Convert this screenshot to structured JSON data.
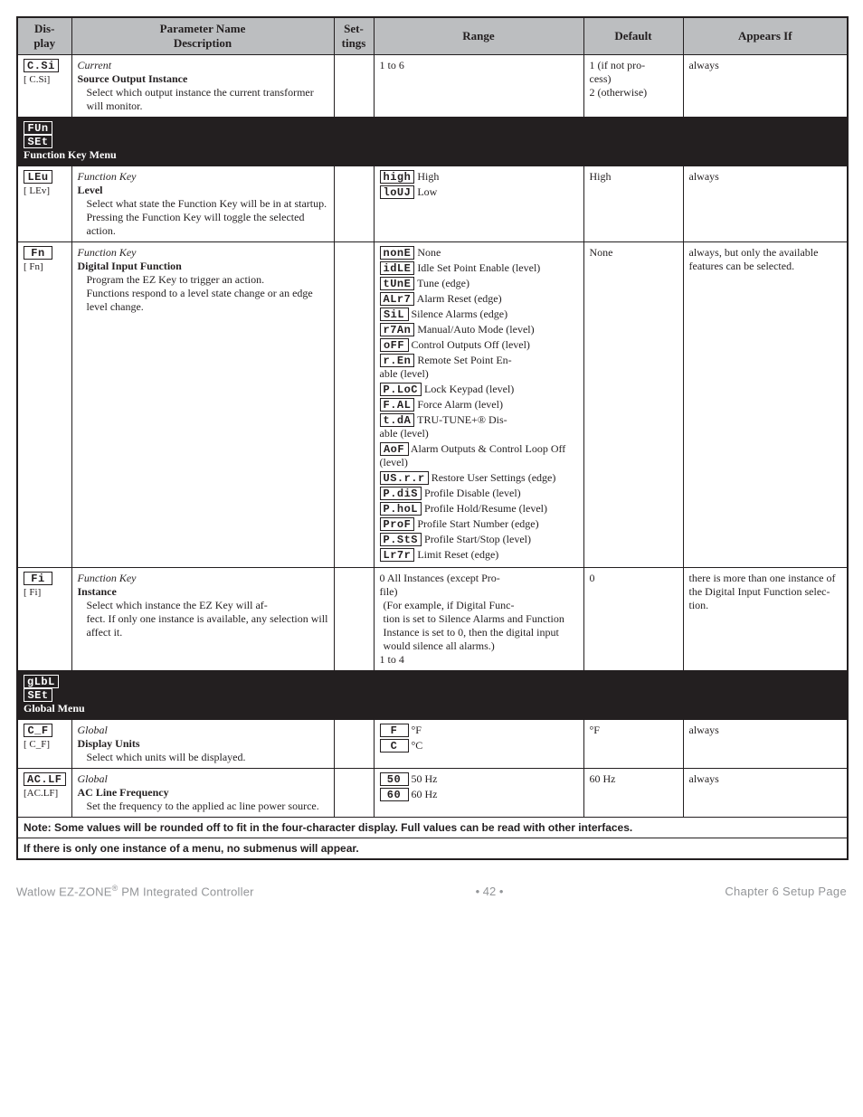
{
  "header": {
    "display": "Dis-\nplay",
    "param": "Parameter Name\nDescription",
    "settings": "Set-\ntings",
    "range": "Range",
    "default": "Default",
    "appears": "Appears If"
  },
  "rows": {
    "csi": {
      "seg": "C.Si",
      "code": "[ C.Si]",
      "name_i": "Current",
      "name_b": "Source Output Instance",
      "desc": "Select which output instance the current transformer will monitor.",
      "range": "1 to 6",
      "default": "1 (if not pro-\ncess)\n2 (otherwise)",
      "appears": "always"
    },
    "sec_fun": {
      "seg1": "FUn",
      "seg2": "SEt",
      "title": "Function Key Menu"
    },
    "lev": {
      "seg": "LEu",
      "code": "[ LEv]",
      "name_i": "Function Key",
      "name_b": "Level",
      "desc1": "Select what state the Function Key will be in at startup.",
      "desc2": "Pressing the Function Key will toggle the selected action.",
      "r1_seg": "high",
      "r1_txt": "High",
      "r2_seg": "loUJ",
      "r2_txt": "Low",
      "default": "High",
      "appears": "always"
    },
    "fn": {
      "seg": "Fn",
      "code": "[  Fn]",
      "name_i": "Function Key",
      "name_b": "Digital Input Function",
      "desc1": "Program the EZ Key to trigger an action.",
      "desc2": "Functions respond to a level state change or an edge level change.",
      "default": "None",
      "appears": "always, but only the available features can be selected.",
      "ranges": [
        {
          "seg": "nonE",
          "txt": "None"
        },
        {
          "seg": "idLE",
          "txt": "Idle Set Point Enable (level)"
        },
        {
          "seg": "tUnE",
          "txt": "Tune (edge)"
        },
        {
          "seg": "ALr7",
          "txt": "Alarm Reset (edge)"
        },
        {
          "seg": "SiL",
          "txt": "Silence Alarms (edge)"
        },
        {
          "seg": "r7An",
          "txt": "Manual/Auto Mode (level)"
        },
        {
          "seg": "oFF",
          "txt": "Control Outputs Off (level)"
        },
        {
          "seg": "r.En",
          "txt": "Remote Set Point En-\nable (level)"
        },
        {
          "seg": "P.LoC",
          "txt": "Lock Keypad (level)"
        },
        {
          "seg": "F.AL",
          "txt": "Force Alarm (level)"
        },
        {
          "seg": "t.dA",
          "txt": "TRU-TUNE+® Dis-\nable (level)"
        },
        {
          "seg": "AoF",
          "txt": "Alarm Outputs & Control Loop Off (level)"
        },
        {
          "seg": "US.r.r",
          "txt": "Restore User Settings (edge)"
        },
        {
          "seg": "P.diS",
          "txt": "Profile Disable (level)"
        },
        {
          "seg": "P.hoL",
          "txt": "Profile Hold/Resume (level)"
        },
        {
          "seg": "ProF",
          "txt": "Profile Start Number (edge)"
        },
        {
          "seg": "P.StS",
          "txt": "Profile Start/Stop (level)"
        },
        {
          "seg": "Lr7r",
          "txt": "Limit Reset (edge)"
        }
      ]
    },
    "fi": {
      "seg": "Fi",
      "code": "[   Fi]",
      "name_i": "Function Key",
      "name_b": "Instance",
      "desc": "Select which instance the EZ Key will af-\nfect. If only one instance is available, any selection will affect it.",
      "r_main": "0 All Instances (except Pro-\nfile)",
      "r_paren": "(For example, if Digital Func-\ntion is set to Silence Alarms and Function Instance is set to 0, then the digital input would silence all alarms.)",
      "r_last": "1 to 4",
      "default": "0",
      "appears": "there is more than one instance of the Digital Input Function selec-\ntion."
    },
    "sec_glbl": {
      "seg1": "gLbL",
      "seg2": "SEt",
      "title": "Global Menu"
    },
    "cf": {
      "seg": "C_F",
      "code": "[ C_F]",
      "name_i": "Global",
      "name_b": "Display Units",
      "desc": "Select which units will be displayed.",
      "r1_seg": "F",
      "r1_txt": "°F",
      "r2_seg": "C",
      "r2_txt": "°C",
      "default": "°F",
      "appears": "always"
    },
    "aclf": {
      "seg": "AC.LF",
      "code": "[AC.LF]",
      "name_i": "Global",
      "name_b": "AC Line Frequency",
      "desc": "Set the frequency to the applied ac line power source.",
      "r1_seg": "50",
      "r1_txt": "50 Hz",
      "r2_seg": "60",
      "r2_txt": "60 Hz",
      "default": "60 Hz",
      "appears": "always"
    },
    "note1": "Note: Some values will be rounded off to fit in the four-character display. Full values can be read with other interfaces.",
    "note2": "If there is only one instance of a menu, no submenus will appear."
  },
  "footer": {
    "left_a": "Watlow EZ-ZONE",
    "left_b": " PM Integrated Controller",
    "mid": "•  42  •",
    "right": "Chapter 6 Setup Page"
  }
}
